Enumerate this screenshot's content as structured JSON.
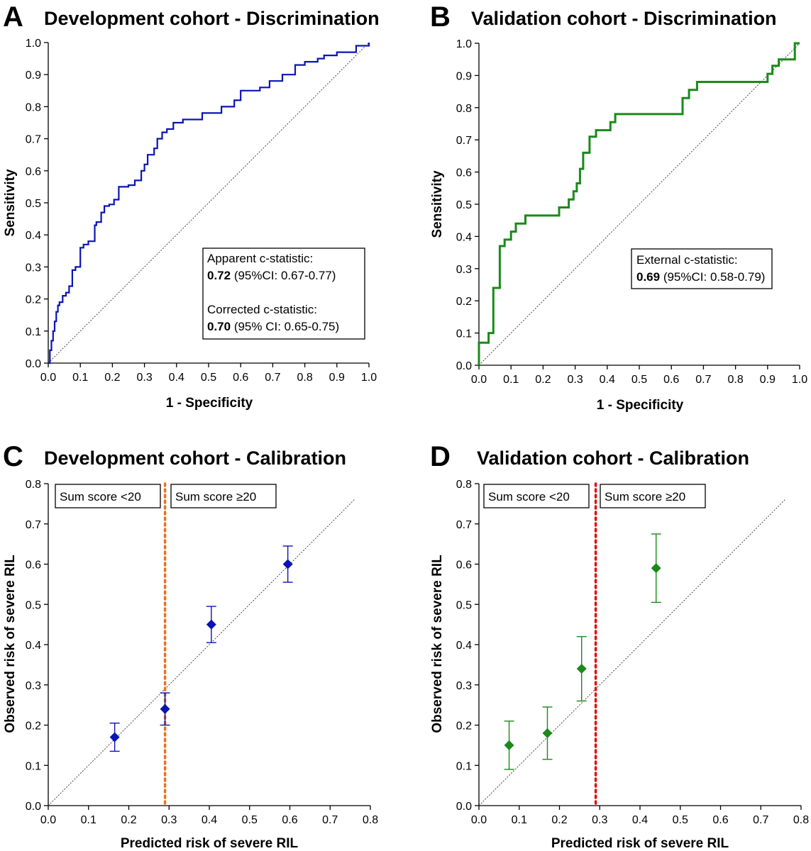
{
  "colors": {
    "blue": "#0a14b4",
    "green": "#1a8a1a",
    "orange": "#f07020",
    "red": "#e01010"
  },
  "chart_data": [
    {
      "type": "line",
      "letter": "A",
      "title": "Development cohort - Discrimination",
      "xlabel": "1 - Specificity",
      "ylabel": "Sensitivity",
      "xlim": [
        0,
        1
      ],
      "ylim": [
        0,
        1
      ],
      "ticks": [
        "0.0",
        "0.1",
        "0.2",
        "0.3",
        "0.4",
        "0.5",
        "0.6",
        "0.7",
        "0.8",
        "0.9",
        "1.0"
      ],
      "color": "blue",
      "reference_line": true,
      "annotation": {
        "line1": "Apparent c-statistic:",
        "line2_bold": "0.72",
        "line2_rest": " (95%CI: 0.67-0.77)",
        "line3": "Corrected c-statistic:",
        "line4_bold": "0.70",
        "line4_rest": " (95% CI: 0.65-0.75)"
      },
      "series": [
        {
          "x": [
            0,
            0.005,
            0.01,
            0.015,
            0.02,
            0.025,
            0.03,
            0.035,
            0.045,
            0.055,
            0.065,
            0.075,
            0.085,
            0.1,
            0.11,
            0.125,
            0.145,
            0.15,
            0.165,
            0.175,
            0.19,
            0.205,
            0.22,
            0.235,
            0.25,
            0.27,
            0.29,
            0.3,
            0.31,
            0.33,
            0.34,
            0.355,
            0.37,
            0.39,
            0.42,
            0.44,
            0.48,
            0.5,
            0.54,
            0.58,
            0.6,
            0.64,
            0.66,
            0.69,
            0.72,
            0.73,
            0.77,
            0.8,
            0.84,
            0.86,
            0.9,
            0.93,
            0.96,
            1.0
          ],
          "y": [
            0,
            0.04,
            0.07,
            0.1,
            0.13,
            0.16,
            0.18,
            0.19,
            0.21,
            0.22,
            0.24,
            0.29,
            0.3,
            0.36,
            0.37,
            0.38,
            0.43,
            0.44,
            0.47,
            0.49,
            0.495,
            0.51,
            0.55,
            0.55,
            0.555,
            0.57,
            0.6,
            0.62,
            0.65,
            0.67,
            0.7,
            0.72,
            0.73,
            0.75,
            0.76,
            0.76,
            0.78,
            0.78,
            0.8,
            0.82,
            0.85,
            0.85,
            0.86,
            0.88,
            0.88,
            0.9,
            0.93,
            0.94,
            0.95,
            0.96,
            0.97,
            0.97,
            0.99,
            1.0
          ]
        }
      ]
    },
    {
      "type": "line",
      "letter": "B",
      "title": "Validation cohort - Discrimination",
      "xlabel": "1 - Specificity",
      "ylabel": "Sensitivity",
      "xlim": [
        0,
        1
      ],
      "ylim": [
        0,
        1
      ],
      "ticks": [
        "0.0",
        "0.1",
        "0.2",
        "0.3",
        "0.4",
        "0.5",
        "0.6",
        "0.7",
        "0.8",
        "0.9",
        "1.0"
      ],
      "color": "green",
      "reference_line": true,
      "annotation": {
        "line1": "External c-statistic:",
        "line2_bold": "0.69",
        "line2_rest": " (95%CI: 0.58-0.79)"
      },
      "series": [
        {
          "steps": [
            [
              0,
              0
            ],
            [
              0,
              0.07
            ],
            [
              0.03,
              0.07
            ],
            [
              0.03,
              0.1
            ],
            [
              0.045,
              0.1
            ],
            [
              0.045,
              0.24
            ],
            [
              0.065,
              0.24
            ],
            [
              0.065,
              0.37
            ],
            [
              0.08,
              0.37
            ],
            [
              0.08,
              0.39
            ],
            [
              0.1,
              0.39
            ],
            [
              0.1,
              0.415
            ],
            [
              0.115,
              0.415
            ],
            [
              0.115,
              0.44
            ],
            [
              0.145,
              0.44
            ],
            [
              0.145,
              0.465
            ],
            [
              0.25,
              0.465
            ],
            [
              0.25,
              0.49
            ],
            [
              0.28,
              0.49
            ],
            [
              0.28,
              0.515
            ],
            [
              0.295,
              0.515
            ],
            [
              0.295,
              0.54
            ],
            [
              0.305,
              0.54
            ],
            [
              0.305,
              0.565
            ],
            [
              0.315,
              0.565
            ],
            [
              0.315,
              0.61
            ],
            [
              0.325,
              0.61
            ],
            [
              0.325,
              0.66
            ],
            [
              0.345,
              0.66
            ],
            [
              0.345,
              0.71
            ],
            [
              0.365,
              0.71
            ],
            [
              0.365,
              0.73
            ],
            [
              0.41,
              0.73
            ],
            [
              0.41,
              0.755
            ],
            [
              0.425,
              0.755
            ],
            [
              0.425,
              0.78
            ],
            [
              0.635,
              0.78
            ],
            [
              0.635,
              0.83
            ],
            [
              0.655,
              0.83
            ],
            [
              0.655,
              0.855
            ],
            [
              0.68,
              0.855
            ],
            [
              0.68,
              0.88
            ],
            [
              0.9,
              0.88
            ],
            [
              0.9,
              0.905
            ],
            [
              0.915,
              0.905
            ],
            [
              0.915,
              0.93
            ],
            [
              0.935,
              0.93
            ],
            [
              0.935,
              0.95
            ],
            [
              0.985,
              0.95
            ],
            [
              0.985,
              1.0
            ],
            [
              1.0,
              1.0
            ]
          ]
        }
      ]
    },
    {
      "type": "scatter",
      "letter": "C",
      "title": "Development cohort - Calibration",
      "xlabel": "Predicted risk of severe RIL",
      "ylabel": "Observed risk of severe RIL",
      "xlim": [
        0,
        0.8
      ],
      "ylim": [
        0,
        0.8
      ],
      "ticks": [
        "0.0",
        "0.1",
        "0.2",
        "0.3",
        "0.4",
        "0.5",
        "0.6",
        "0.7",
        "0.8"
      ],
      "color": "blue",
      "threshold": {
        "x": 0.29,
        "color": "orange",
        "left_label": "Sum score <20",
        "right_label": "Sum score ≥20"
      },
      "points": [
        {
          "x": 0.165,
          "y": 0.17,
          "lo": 0.135,
          "hi": 0.205
        },
        {
          "x": 0.29,
          "y": 0.24,
          "lo": 0.2,
          "hi": 0.28
        },
        {
          "x": 0.405,
          "y": 0.45,
          "lo": 0.405,
          "hi": 0.495
        },
        {
          "x": 0.595,
          "y": 0.6,
          "lo": 0.555,
          "hi": 0.645
        }
      ]
    },
    {
      "type": "scatter",
      "letter": "D",
      "title": "Validation cohort - Calibration",
      "xlabel": "Predicted risk of severe RIL",
      "ylabel": "Observed risk of severe RIL",
      "xlim": [
        0,
        0.8
      ],
      "ylim": [
        0,
        0.8
      ],
      "ticks": [
        "0.0",
        "0.1",
        "0.2",
        "0.3",
        "0.4",
        "0.5",
        "0.6",
        "0.7",
        "0.8"
      ],
      "color": "green",
      "threshold": {
        "x": 0.29,
        "color": "red",
        "left_label": "Sum score <20",
        "right_label": "Sum score ≥20"
      },
      "points": [
        {
          "x": 0.075,
          "y": 0.15,
          "lo": 0.09,
          "hi": 0.21
        },
        {
          "x": 0.17,
          "y": 0.18,
          "lo": 0.115,
          "hi": 0.245
        },
        {
          "x": 0.255,
          "y": 0.34,
          "lo": 0.26,
          "hi": 0.42
        },
        {
          "x": 0.44,
          "y": 0.59,
          "lo": 0.505,
          "hi": 0.675
        }
      ]
    }
  ]
}
